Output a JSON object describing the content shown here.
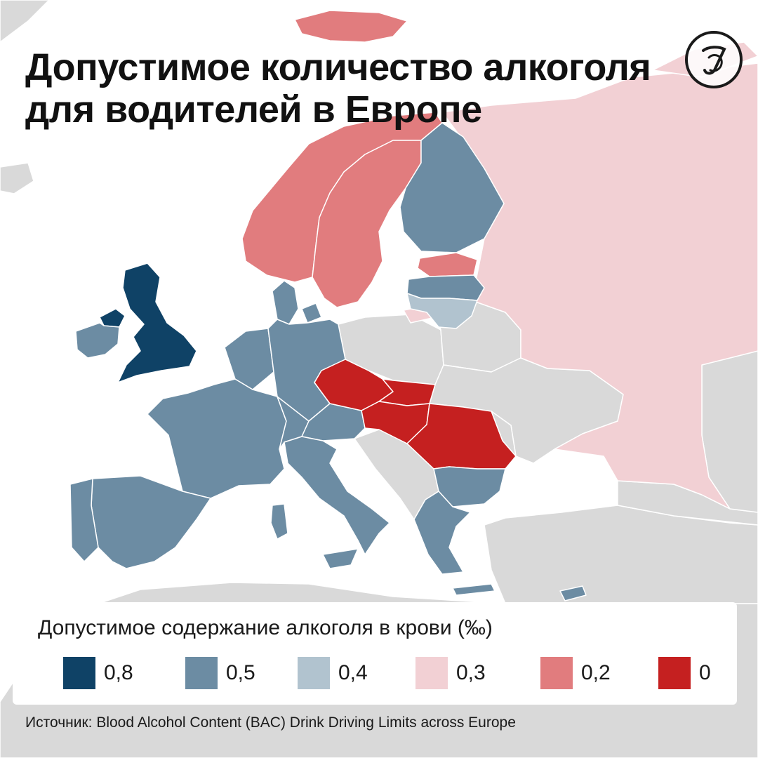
{
  "title_line1": "Допустимое количество алкоголя",
  "title_line2": "для водителей в Европе",
  "logo_icon": "publisher-logo-icon",
  "legend": {
    "title": "Допустимое содержание алкоголя в крови (‰)",
    "items": [
      {
        "label": "0,8",
        "color": "#0f4266"
      },
      {
        "label": "0,5",
        "color": "#6c8ca3"
      },
      {
        "label": "0,4",
        "color": "#b1c3cf"
      },
      {
        "label": "0,3",
        "color": "#f2d0d4"
      },
      {
        "label": "0,2",
        "color": "#e17c7e"
      },
      {
        "label": "0",
        "color": "#c52020"
      }
    ]
  },
  "source": "Источник: Blood Alcohol Content (BAC) Drink Driving Limits across Europe",
  "colors": {
    "sea": "#ffffff",
    "no_data": "#d9d9d9",
    "limit_0_8": "#0f4266",
    "limit_0_5": "#6c8ca3",
    "limit_0_4": "#b1c3cf",
    "limit_0_3": "#f2d0d4",
    "limit_0_2": "#e17c7e",
    "limit_0": "#c52020"
  },
  "regions": {
    "limit_0_8": [
      "United Kingdom"
    ],
    "limit_0_5": [
      "Ireland",
      "Finland",
      "Latvia",
      "Denmark",
      "France",
      "Spain",
      "Portugal",
      "Germany",
      "Belgium",
      "Netherlands",
      "Switzerland",
      "Austria",
      "Italy",
      "Bulgaria",
      "Greece"
    ],
    "limit_0_4": [
      "Lithuania"
    ],
    "limit_0_3": [
      "Russia"
    ],
    "limit_0_2": [
      "Norway",
      "Sweden",
      "Estonia",
      "Svalbard"
    ],
    "limit_0": [
      "Czech Republic",
      "Slovakia",
      "Hungary",
      "Romania"
    ]
  }
}
